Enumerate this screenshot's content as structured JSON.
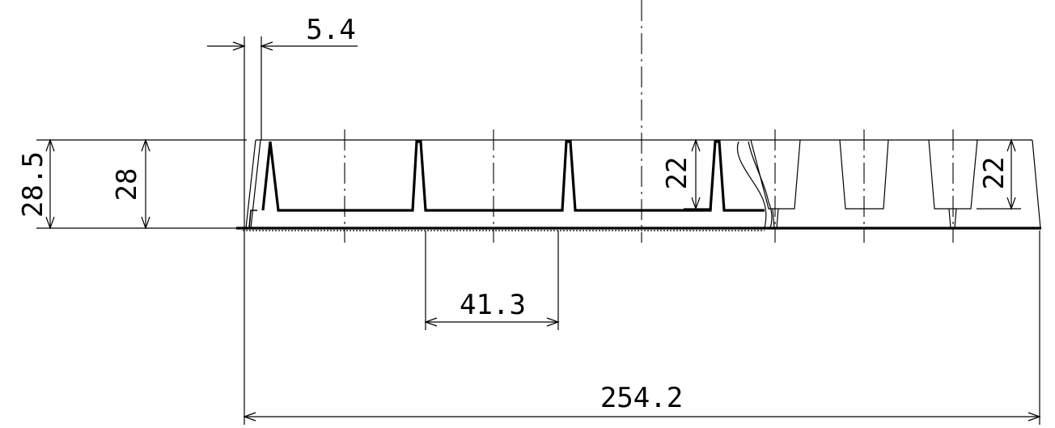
{
  "dimensions": {
    "overall_length": "254.2",
    "cell_pitch": "41.3",
    "wall_offset": "5.4",
    "total_height": "28.5",
    "body_height": "28",
    "cell_depth_left": "22",
    "cell_depth_right": "22"
  }
}
